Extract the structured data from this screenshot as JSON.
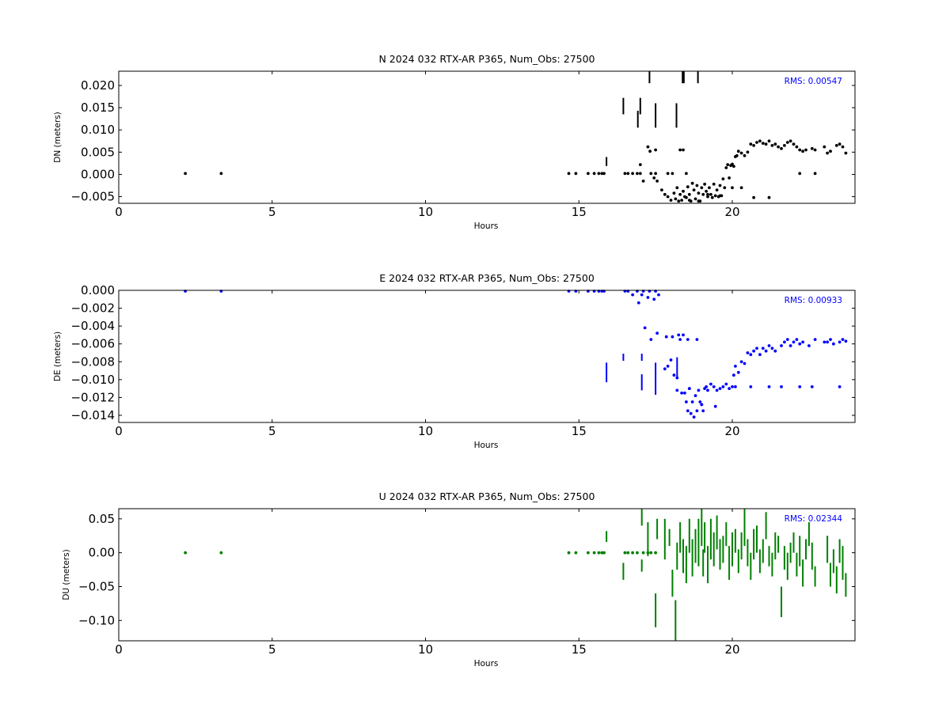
{
  "chart_data": [
    {
      "type": "scatter",
      "title": "N 2024 032 RTX-AR  P365, Num_Obs: 27500",
      "xlabel": "Hours",
      "ylabel": "DN (meters)",
      "xlim": [
        0,
        24
      ],
      "ylim": [
        -0.0065,
        0.0232
      ],
      "xticks": [
        "0",
        "5",
        "10",
        "15",
        "20"
      ],
      "yticks": [
        "0.020",
        "0.015",
        "0.010",
        "0.005",
        "0.000",
        "−0.005"
      ],
      "annotation": "RMS:  0.00547",
      "color": "#000000",
      "grid": false,
      "points": {
        "x": [
          2.17,
          3.34,
          14.67,
          14.9,
          15.3,
          15.5,
          15.65,
          15.75,
          15.82,
          16.5,
          16.6,
          16.75,
          16.9,
          17.0,
          17.0,
          17.1,
          17.25,
          17.32,
          17.35,
          17.45,
          17.5,
          17.5,
          17.55,
          17.7,
          17.8,
          17.9,
          17.9,
          18.0,
          18.05,
          18.1,
          18.15,
          18.2,
          18.25,
          18.3,
          18.3,
          18.35,
          18.4,
          18.4,
          18.45,
          18.5,
          18.5,
          18.55,
          18.6,
          18.65,
          18.7,
          18.75,
          18.8,
          18.85,
          18.9,
          18.95,
          19.0,
          19.05,
          19.1,
          19.15,
          19.2,
          19.25,
          19.3,
          19.35,
          19.4,
          19.45,
          19.5,
          19.55,
          19.6,
          19.65,
          19.7,
          19.75,
          19.8,
          19.85,
          19.9,
          19.95,
          20.0,
          20.05,
          20.1,
          20.15,
          20.2,
          20.3,
          20.4,
          20.5,
          20.6,
          20.7,
          20.8,
          20.9,
          21.0,
          21.1,
          21.2,
          21.3,
          21.4,
          21.5,
          21.6,
          21.7,
          21.8,
          21.9,
          22.0,
          22.1,
          22.2,
          22.3,
          22.4,
          22.6,
          22.7,
          23.0,
          23.1,
          23.2,
          23.4,
          23.5,
          23.6,
          23.7,
          18.6,
          18.9,
          19.2,
          19.6,
          20.0,
          20.3,
          20.7,
          21.2,
          22.2,
          22.7
        ],
        "y": [
          0.0002,
          0.0002,
          0.0002,
          0.0002,
          0.0002,
          0.0002,
          0.0002,
          0.0002,
          0.0002,
          0.0002,
          0.0002,
          0.0002,
          0.0002,
          0.0022,
          0.0002,
          -0.0015,
          0.0062,
          0.0052,
          0.0002,
          -0.0008,
          0.0055,
          0.0002,
          -0.0015,
          -0.0035,
          -0.0045,
          0.0002,
          -0.005,
          -0.0058,
          0.0002,
          -0.0042,
          -0.0055,
          -0.003,
          -0.006,
          0.0055,
          -0.0045,
          -0.0058,
          0.0055,
          -0.0038,
          -0.005,
          0.0002,
          -0.0052,
          -0.0028,
          -0.0045,
          -0.006,
          -0.002,
          -0.0035,
          -0.0055,
          -0.0025,
          -0.0042,
          -0.006,
          -0.003,
          -0.0045,
          -0.0022,
          -0.0038,
          -0.005,
          -0.003,
          -0.0045,
          -0.0052,
          -0.0022,
          -0.0048,
          -0.0035,
          -0.005,
          -0.0025,
          -0.0048,
          -0.001,
          -0.003,
          0.0015,
          0.0022,
          -0.0008,
          0.002,
          0.0023,
          0.0018,
          0.004,
          0.0042,
          0.0052,
          0.0048,
          0.0042,
          0.005,
          0.0068,
          0.0065,
          0.0072,
          0.0075,
          0.007,
          0.0068,
          0.0075,
          0.0065,
          0.0068,
          0.0062,
          0.0058,
          0.0065,
          0.0072,
          0.0075,
          0.0068,
          0.0062,
          0.0055,
          0.0052,
          0.0055,
          0.0058,
          0.0055,
          0.0062,
          0.0048,
          0.0052,
          0.0065,
          0.0068,
          0.0062,
          0.0048,
          -0.0058,
          -0.006,
          -0.0045,
          -0.0048,
          -0.003,
          -0.003,
          -0.0052,
          -0.0052,
          0.0002,
          0.0002
        ]
      },
      "bars": [
        {
          "x": 15.9,
          "y0": 0.0019,
          "y1": 0.0039
        },
        {
          "x": 16.45,
          "y0": 0.0135,
          "y1": 0.0172
        },
        {
          "x": 16.92,
          "y0": 0.0105,
          "y1": 0.0143
        },
        {
          "x": 17.0,
          "y0": 0.0135,
          "y1": 0.0172
        },
        {
          "x": 17.3,
          "y0": 0.0205,
          "y1": 0.0232
        },
        {
          "x": 17.5,
          "y0": 0.0105,
          "y1": 0.016
        },
        {
          "x": 18.18,
          "y0": 0.0105,
          "y1": 0.016
        },
        {
          "x": 18.38,
          "y0": 0.0205,
          "y1": 0.0232
        },
        {
          "x": 18.42,
          "y0": 0.0205,
          "y1": 0.0232
        },
        {
          "x": 18.88,
          "y0": 0.0205,
          "y1": 0.0232
        }
      ]
    },
    {
      "type": "scatter",
      "title": "E 2024 032 RTX-AR  P365, Num_Obs: 27500",
      "xlabel": "Hours",
      "ylabel": "DE (meters)",
      "xlim": [
        0,
        24
      ],
      "ylim": [
        -0.0148,
        0.0
      ],
      "xticks": [
        "0",
        "5",
        "10",
        "15",
        "20"
      ],
      "yticks": [
        "0.000",
        "−0.002",
        "−0.004",
        "−0.006",
        "−0.008",
        "−0.010",
        "−0.012",
        "−0.014"
      ],
      "annotation": "RMS:  0.00933",
      "color": "#0000ff",
      "grid": false,
      "points": {
        "x": [
          2.17,
          3.34,
          14.67,
          14.9,
          15.3,
          15.5,
          15.65,
          15.75,
          15.82,
          16.5,
          16.6,
          16.75,
          16.9,
          16.95,
          17.05,
          17.1,
          17.25,
          17.3,
          17.45,
          17.5,
          17.6,
          17.8,
          17.9,
          18.0,
          18.05,
          18.1,
          18.2,
          18.3,
          18.35,
          18.4,
          18.45,
          18.5,
          18.55,
          18.6,
          18.65,
          18.7,
          18.75,
          18.8,
          18.85,
          18.9,
          18.95,
          19.0,
          19.05,
          19.1,
          19.15,
          19.2,
          19.3,
          19.4,
          19.5,
          19.6,
          19.7,
          19.8,
          19.9,
          20.0,
          20.05,
          20.1,
          20.2,
          20.3,
          20.4,
          20.5,
          20.6,
          20.7,
          20.8,
          20.9,
          21.0,
          21.1,
          21.2,
          21.3,
          21.4,
          21.6,
          21.7,
          21.8,
          21.9,
          22.0,
          22.1,
          22.2,
          22.3,
          22.5,
          22.7,
          23.0,
          23.1,
          23.2,
          23.3,
          23.5,
          23.6,
          23.7,
          17.15,
          17.35,
          17.55,
          17.85,
          18.25,
          18.55,
          18.85,
          19.45,
          20.1,
          20.6,
          21.2,
          21.6,
          22.2,
          22.6,
          23.5,
          18.2,
          18.6,
          19.0
        ],
        "y": [
          0.0,
          0.0,
          0.0,
          0.0,
          0.0,
          0.0,
          0.0,
          0.0,
          0.0,
          0.0,
          0.0,
          -0.0005,
          0.0,
          -0.0014,
          -0.0005,
          0.0,
          -0.0008,
          0.0,
          -0.001,
          0.0,
          -0.0005,
          -0.0088,
          -0.0085,
          -0.0078,
          -0.0052,
          -0.0095,
          -0.0112,
          -0.0055,
          -0.0115,
          -0.005,
          -0.0115,
          -0.0125,
          -0.0135,
          -0.011,
          -0.0138,
          -0.0125,
          -0.0142,
          -0.0118,
          -0.0135,
          -0.0112,
          -0.0125,
          -0.0128,
          -0.0135,
          -0.011,
          -0.0108,
          -0.0112,
          -0.0105,
          -0.0108,
          -0.0112,
          -0.011,
          -0.0108,
          -0.0105,
          -0.011,
          -0.0108,
          -0.0095,
          -0.0085,
          -0.0092,
          -0.008,
          -0.0082,
          -0.007,
          -0.0072,
          -0.0068,
          -0.0065,
          -0.0072,
          -0.0065,
          -0.0068,
          -0.0062,
          -0.0065,
          -0.0068,
          -0.0062,
          -0.0058,
          -0.0055,
          -0.0062,
          -0.0058,
          -0.0055,
          -0.006,
          -0.0058,
          -0.0062,
          -0.0055,
          -0.0058,
          -0.0058,
          -0.0055,
          -0.006,
          -0.0058,
          -0.0055,
          -0.0057,
          -0.0042,
          -0.0055,
          -0.0048,
          -0.0052,
          -0.005,
          -0.0055,
          -0.0055,
          -0.013,
          -0.0108,
          -0.0108,
          -0.0108,
          -0.0108,
          -0.0108,
          -0.0108,
          -0.0108,
          -0.0098,
          -0.011,
          -0.0128
        ]
      },
      "bars": [
        {
          "x": 15.9,
          "y0": -0.0103,
          "y1": -0.0081
        },
        {
          "x": 16.45,
          "y0": -0.0079,
          "y1": -0.0071
        },
        {
          "x": 17.05,
          "y0": -0.0112,
          "y1": -0.0094
        },
        {
          "x": 17.05,
          "y0": -0.0079,
          "y1": -0.0071
        },
        {
          "x": 17.5,
          "y0": -0.0117,
          "y1": -0.0081
        },
        {
          "x": 18.2,
          "y0": -0.0098,
          "y1": -0.0075
        }
      ]
    },
    {
      "type": "scatter",
      "title": "U 2024 032 RTX-AR  P365, Num_Obs: 27500",
      "xlabel": "Hours",
      "ylabel": "DU (meters)",
      "xlim": [
        0,
        24
      ],
      "ylim": [
        -0.13,
        0.065
      ],
      "xticks": [
        "0",
        "5",
        "10",
        "15",
        "20"
      ],
      "yticks": [
        "0.05",
        "0.00",
        "−0.05",
        "−0.10"
      ],
      "annotation": "RMS:  0.02344",
      "color": "#008000",
      "grid": false,
      "points": {
        "x": [
          2.17,
          3.34,
          14.67,
          14.9,
          15.3,
          15.5,
          15.65,
          15.75,
          15.82,
          16.5,
          16.6,
          16.75,
          16.9,
          17.1,
          17.25,
          17.35,
          17.5
        ],
        "y": [
          0.0,
          0.0,
          0.0,
          0.0,
          0.0,
          0.0,
          0.0,
          0.0,
          0.0,
          0.0,
          0.0,
          0.0,
          0.0,
          0.0,
          0.0,
          0.0,
          0.0
        ]
      },
      "bars": [
        {
          "x": 15.9,
          "y0": 0.016,
          "y1": 0.032
        },
        {
          "x": 16.45,
          "y0": -0.04,
          "y1": -0.015
        },
        {
          "x": 17.05,
          "y0": 0.04,
          "y1": 0.065
        },
        {
          "x": 17.05,
          "y0": -0.028,
          "y1": -0.01
        },
        {
          "x": 17.25,
          "y0": -0.005,
          "y1": 0.045
        },
        {
          "x": 17.5,
          "y0": -0.11,
          "y1": -0.06
        },
        {
          "x": 17.55,
          "y0": 0.02,
          "y1": 0.05
        },
        {
          "x": 17.8,
          "y0": -0.01,
          "y1": 0.05
        },
        {
          "x": 17.95,
          "y0": 0.01,
          "y1": 0.035
        },
        {
          "x": 18.05,
          "y0": -0.065,
          "y1": -0.025
        },
        {
          "x": 18.15,
          "y0": -0.13,
          "y1": -0.07
        },
        {
          "x": 18.2,
          "y0": -0.025,
          "y1": 0.015
        },
        {
          "x": 18.3,
          "y0": 0.0,
          "y1": 0.045
        },
        {
          "x": 18.4,
          "y0": -0.03,
          "y1": 0.02
        },
        {
          "x": 18.5,
          "y0": -0.045,
          "y1": 0.01
        },
        {
          "x": 18.6,
          "y0": 0.0,
          "y1": 0.05
        },
        {
          "x": 18.7,
          "y0": -0.035,
          "y1": 0.02
        },
        {
          "x": 18.8,
          "y0": -0.015,
          "y1": 0.035
        },
        {
          "x": 18.9,
          "y0": -0.02,
          "y1": 0.05
        },
        {
          "x": 19.0,
          "y0": 0.01,
          "y1": 0.065
        },
        {
          "x": 19.05,
          "y0": -0.035,
          "y1": 0.005
        },
        {
          "x": 19.1,
          "y0": 0.0,
          "y1": 0.045
        },
        {
          "x": 19.2,
          "y0": -0.045,
          "y1": 0.01
        },
        {
          "x": 19.3,
          "y0": -0.01,
          "y1": 0.05
        },
        {
          "x": 19.4,
          "y0": -0.02,
          "y1": 0.03
        },
        {
          "x": 19.5,
          "y0": 0.005,
          "y1": 0.055
        },
        {
          "x": 19.6,
          "y0": -0.025,
          "y1": 0.02
        },
        {
          "x": 19.7,
          "y0": -0.015,
          "y1": 0.025
        },
        {
          "x": 19.8,
          "y0": 0.01,
          "y1": 0.045
        },
        {
          "x": 19.9,
          "y0": -0.04,
          "y1": 0.01
        },
        {
          "x": 20.0,
          "y0": -0.02,
          "y1": 0.03
        },
        {
          "x": 20.1,
          "y0": 0.0,
          "y1": 0.035
        },
        {
          "x": 20.2,
          "y0": -0.03,
          "y1": 0.005
        },
        {
          "x": 20.3,
          "y0": -0.01,
          "y1": 0.03
        },
        {
          "x": 20.4,
          "y0": 0.01,
          "y1": 0.065
        },
        {
          "x": 20.5,
          "y0": -0.02,
          "y1": 0.02
        },
        {
          "x": 20.6,
          "y0": -0.04,
          "y1": 0.0
        },
        {
          "x": 20.7,
          "y0": -0.01,
          "y1": 0.035
        },
        {
          "x": 20.8,
          "y0": 0.0,
          "y1": 0.04
        },
        {
          "x": 20.9,
          "y0": -0.03,
          "y1": 0.005
        },
        {
          "x": 21.0,
          "y0": -0.015,
          "y1": 0.02
        },
        {
          "x": 21.1,
          "y0": 0.02,
          "y1": 0.06
        },
        {
          "x": 21.2,
          "y0": -0.02,
          "y1": 0.01
        },
        {
          "x": 21.3,
          "y0": -0.035,
          "y1": 0.0
        },
        {
          "x": 21.4,
          "y0": -0.01,
          "y1": 0.03
        },
        {
          "x": 21.5,
          "y0": 0.0,
          "y1": 0.025
        },
        {
          "x": 21.6,
          "y0": -0.095,
          "y1": -0.05
        },
        {
          "x": 21.7,
          "y0": -0.025,
          "y1": 0.01
        },
        {
          "x": 21.8,
          "y0": -0.04,
          "y1": 0.0
        },
        {
          "x": 21.9,
          "y0": -0.015,
          "y1": 0.015
        },
        {
          "x": 22.0,
          "y0": 0.0,
          "y1": 0.03
        },
        {
          "x": 22.1,
          "y0": -0.035,
          "y1": 0.0
        },
        {
          "x": 22.2,
          "y0": -0.02,
          "y1": 0.025
        },
        {
          "x": 22.3,
          "y0": -0.05,
          "y1": -0.01
        },
        {
          "x": 22.4,
          "y0": -0.01,
          "y1": 0.02
        },
        {
          "x": 22.5,
          "y0": 0.01,
          "y1": 0.045
        },
        {
          "x": 22.6,
          "y0": -0.025,
          "y1": 0.015
        },
        {
          "x": 22.7,
          "y0": -0.05,
          "y1": -0.02
        },
        {
          "x": 23.1,
          "y0": -0.015,
          "y1": 0.025
        },
        {
          "x": 23.2,
          "y0": -0.05,
          "y1": -0.015
        },
        {
          "x": 23.3,
          "y0": -0.03,
          "y1": 0.005
        },
        {
          "x": 23.4,
          "y0": -0.06,
          "y1": -0.02
        },
        {
          "x": 23.5,
          "y0": -0.015,
          "y1": 0.02
        },
        {
          "x": 23.6,
          "y0": -0.04,
          "y1": 0.01
        },
        {
          "x": 23.7,
          "y0": -0.065,
          "y1": -0.03
        }
      ]
    }
  ]
}
